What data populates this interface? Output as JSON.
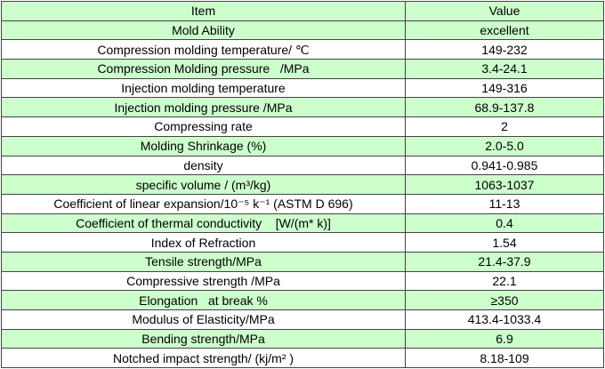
{
  "table": {
    "header": [
      "Item",
      "Value"
    ],
    "rows": [
      [
        "Mold Ability",
        "excellent"
      ],
      [
        "Compression molding temperature/ ℃",
        "149-232"
      ],
      [
        "Compression Molding pressure   /MPa",
        "3.4-24.1"
      ],
      [
        "Injection molding temperature",
        "149-316"
      ],
      [
        "Injection molding pressure /MPa",
        "68.9-137.8"
      ],
      [
        "Compressing rate",
        "2"
      ],
      [
        "Molding Shrinkage (%)",
        "2.0-5.0"
      ],
      [
        "density",
        "0.941-0.985"
      ],
      [
        "specific volume / (m³/kg)",
        "1063-1037"
      ],
      [
        "Coefficient of linear expansion/10⁻⁵ k⁻¹ (ASTM D 696)",
        "11-13"
      ],
      [
        "Coefficient of thermal conductivity    [W/(m* k)]",
        "0.4"
      ],
      [
        "Index of Refraction",
        "1.54"
      ],
      [
        "Tensile strength/MPa",
        "21.4-37.9"
      ],
      [
        "Compressive strength /MPa",
        "22.1"
      ],
      [
        "Elongation   at break %",
        "≥350"
      ],
      [
        "Modulus of Elasticity/MPa",
        "413.4-1033.4"
      ],
      [
        "Bending strength/MPa",
        "6.9"
      ],
      [
        "Notched impact strength/ (kj/m² )",
        "8.18-109"
      ]
    ]
  }
}
